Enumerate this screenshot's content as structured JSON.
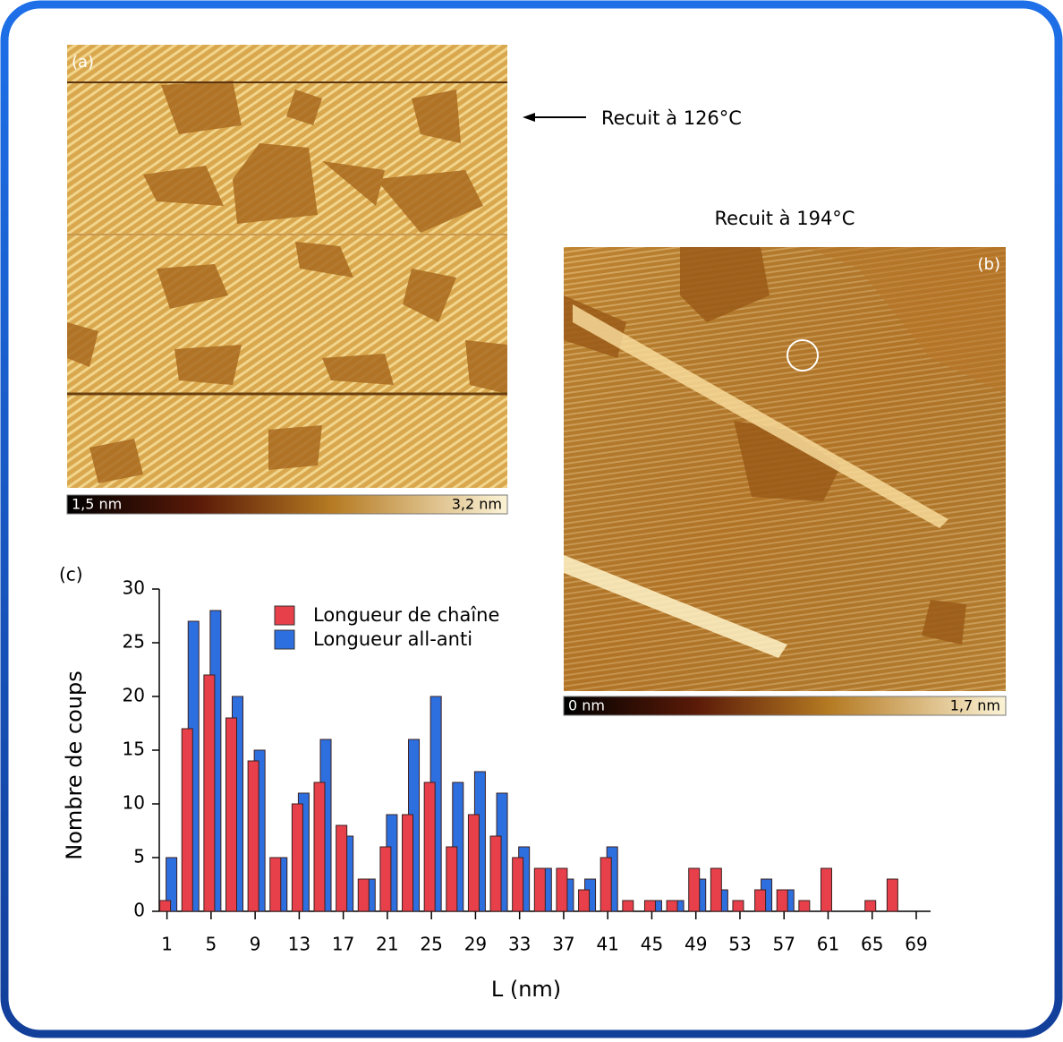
{
  "panels": {
    "a": {
      "label": "(a)",
      "annotation": "Recuit à 126°C",
      "scale_min": "1,5 nm",
      "scale_max": "3,2 nm"
    },
    "b": {
      "label": "(b)",
      "annotation": "Recuit à 194°C",
      "scale_min": "0 nm",
      "scale_max": "1,7 nm"
    }
  },
  "chart_data": {
    "type": "bar",
    "label": "(c)",
    "x_label": "L (nm)",
    "y_label": "Nombre de coups",
    "x": [
      1,
      3,
      5,
      7,
      9,
      11,
      13,
      15,
      17,
      19,
      21,
      23,
      25,
      27,
      29,
      31,
      33,
      35,
      37,
      39,
      41,
      43,
      45,
      47,
      49,
      51,
      53,
      55,
      57,
      59,
      61,
      63,
      65,
      67
    ],
    "series": [
      {
        "name": "Longueur de chaîne",
        "color": "#e8404a",
        "values": [
          1,
          17,
          22,
          18,
          14,
          5,
          10,
          12,
          8,
          3,
          6,
          9,
          12,
          6,
          9,
          7,
          5,
          4,
          4,
          2,
          5,
          1,
          1,
          1,
          4,
          4,
          1,
          2,
          2,
          1,
          4,
          0,
          1,
          3
        ]
      },
      {
        "name": "Longueur all-anti",
        "color": "#2e6fe0",
        "values": [
          5,
          27,
          28,
          20,
          15,
          5,
          11,
          16,
          7,
          3,
          9,
          16,
          20,
          12,
          13,
          11,
          6,
          4,
          3,
          3,
          6,
          0,
          1,
          1,
          3,
          2,
          0,
          3,
          2,
          0,
          0,
          0,
          0,
          0
        ]
      }
    ],
    "xlim": [
      0.3,
      70.3
    ],
    "xticks": [
      1,
      5,
      9,
      13,
      17,
      21,
      25,
      29,
      33,
      37,
      41,
      45,
      49,
      53,
      57,
      61,
      65,
      69
    ],
    "ylim": [
      0,
      30
    ],
    "yticks": [
      0,
      5,
      10,
      15,
      20,
      25,
      30
    ],
    "legend": "top-left"
  }
}
